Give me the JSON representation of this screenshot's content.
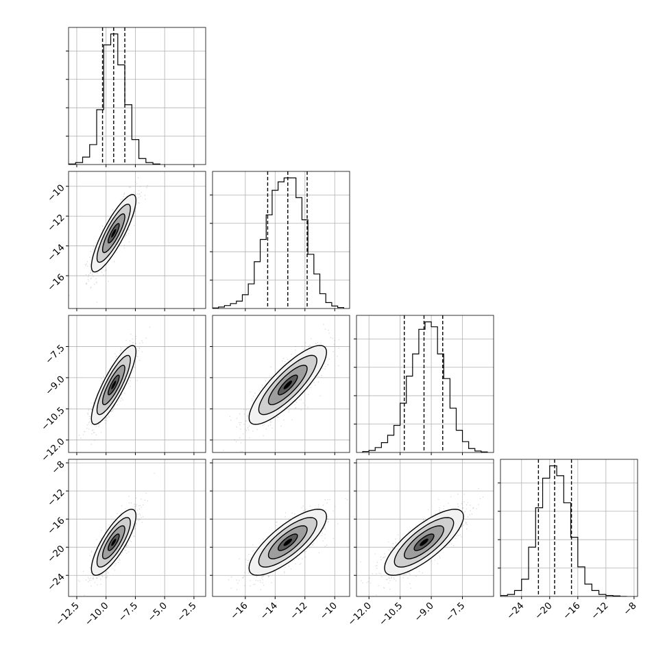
{
  "chart_data": {
    "type": "corner",
    "params": [
      {
        "id": "p0",
        "range": [
          -13.2,
          -1.5
        ],
        "ticks": [
          "−12.5",
          "−10.0",
          "−7.5",
          "−5.0",
          "−2.5"
        ],
        "tick_values": [
          -12.5,
          -10.0,
          -7.5,
          -5.0,
          -2.5
        ],
        "quantiles": [
          -10.3,
          -9.35,
          -8.4
        ]
      },
      {
        "id": "p1",
        "range": [
          -18.2,
          -9.0
        ],
        "ticks": [
          "−16",
          "−14",
          "−12",
          "−10"
        ],
        "tick_values": [
          -16,
          -14,
          -12,
          -10
        ],
        "quantiles": [
          -14.5,
          -13.15,
          -11.85
        ]
      },
      {
        "id": "p2",
        "range": [
          -12.6,
          -6.0
        ],
        "ticks": [
          "−12.0",
          "−10.5",
          "−9.0",
          "−7.5"
        ],
        "tick_values": [
          -12.0,
          -10.5,
          -9.0,
          -7.5
        ],
        "quantiles": [
          -10.3,
          -9.35,
          -8.45
        ]
      },
      {
        "id": "p3",
        "range": [
          -27.0,
          -7.5
        ],
        "ticks": [
          "−24",
          "−20",
          "−16",
          "−12",
          "−8"
        ],
        "tick_values": [
          -24,
          -20,
          -16,
          -12,
          -8
        ],
        "quantiles": [
          -21.6,
          -19.3,
          -16.9
        ]
      }
    ],
    "histograms": [
      {
        "param": 0,
        "bin_width": 0.6,
        "bins": [
          -13.2,
          -12.6,
          -12.0,
          -11.4,
          -10.8,
          -10.2,
          -9.6,
          -9.0,
          -8.4,
          -7.8,
          -7.2,
          -6.6,
          -6.0,
          -5.4
        ],
        "counts": [
          1,
          4,
          15,
          40,
          110,
          240,
          262,
          200,
          120,
          50,
          12,
          4,
          1
        ]
      },
      {
        "param": 1,
        "bin_width": 0.4,
        "bins": [
          -18.2,
          -17.8,
          -17.4,
          -17.0,
          -16.6,
          -16.2,
          -15.8,
          -15.4,
          -15.0,
          -14.6,
          -14.2,
          -13.8,
          -13.4,
          -13.0,
          -12.6,
          -12.2,
          -11.8,
          -11.4,
          -11.0,
          -10.6,
          -10.2,
          -9.8,
          -9.4
        ],
        "counts": [
          1,
          3,
          6,
          10,
          15,
          28,
          50,
          95,
          140,
          190,
          240,
          257,
          265,
          265,
          225,
          180,
          110,
          70,
          30,
          12,
          5,
          2
        ]
      },
      {
        "param": 2,
        "bin_width": 0.3,
        "bins": [
          -12.3,
          -12.0,
          -11.7,
          -11.4,
          -11.1,
          -10.8,
          -10.5,
          -10.2,
          -9.9,
          -9.6,
          -9.3,
          -9.0,
          -8.7,
          -8.4,
          -8.1,
          -7.8,
          -7.5,
          -7.2,
          -6.9,
          -6.6,
          -6.3
        ],
        "counts": [
          2,
          4,
          10,
          20,
          35,
          55,
          100,
          155,
          200,
          250,
          265,
          255,
          200,
          150,
          90,
          45,
          22,
          8,
          3,
          1
        ]
      },
      {
        "param": 3,
        "bin_width": 1.0,
        "bins": [
          -27,
          -26,
          -25,
          -24,
          -23,
          -22,
          -21,
          -20,
          -19,
          -18,
          -17,
          -16,
          -15,
          -14,
          -13,
          -12,
          -11,
          -10,
          -9
        ],
        "counts": [
          2,
          4,
          12,
          35,
          100,
          180,
          240,
          265,
          245,
          190,
          120,
          60,
          25,
          12,
          4,
          2,
          1,
          0
        ]
      }
    ],
    "pairs": [
      {
        "x": 0,
        "y": 1,
        "mean": [
          -9.35,
          -13.15
        ],
        "sd": [
          0.95,
          1.3
        ],
        "corr": 0.85
      },
      {
        "x": 0,
        "y": 2,
        "mean": [
          -9.35,
          -9.35
        ],
        "sd": [
          0.95,
          0.95
        ],
        "corr": 0.85
      },
      {
        "x": 0,
        "y": 3,
        "mean": [
          -9.35,
          -19.3
        ],
        "sd": [
          0.95,
          2.35
        ],
        "corr": 0.8
      },
      {
        "x": 1,
        "y": 2,
        "mean": [
          -13.15,
          -9.35
        ],
        "sd": [
          1.3,
          0.95
        ],
        "corr": 0.83
      },
      {
        "x": 1,
        "y": 3,
        "mean": [
          -13.15,
          -19.3
        ],
        "sd": [
          1.3,
          2.35
        ],
        "corr": 0.78
      },
      {
        "x": 2,
        "y": 3,
        "mean": [
          -9.35,
          -19.3
        ],
        "sd": [
          0.95,
          2.35
        ],
        "corr": 0.78
      }
    ],
    "contour_levels_sigma": [
      0.5,
      1.0,
      1.5,
      2.0
    ],
    "grid": true,
    "quantile_line_style": "dashed"
  }
}
